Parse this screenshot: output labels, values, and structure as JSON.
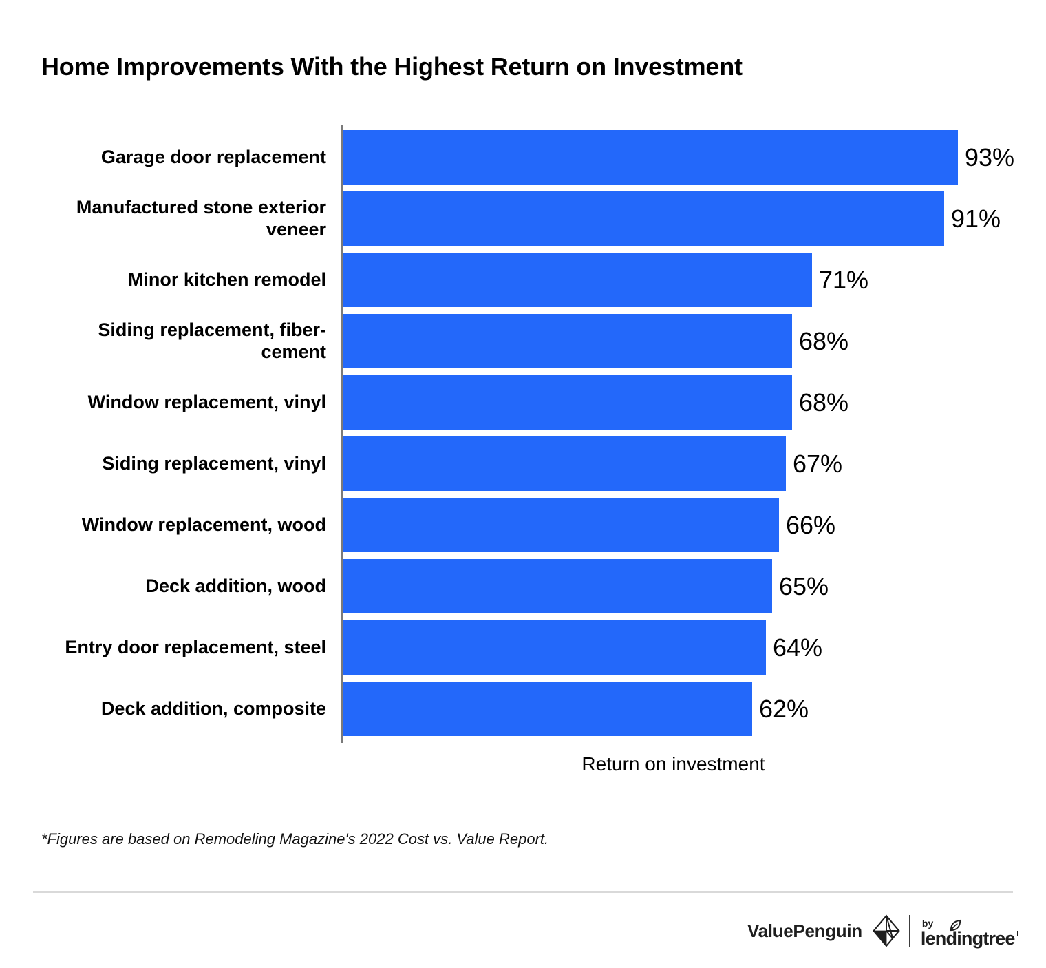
{
  "title": "Home Improvements With the Highest Return on Investment",
  "chart_data": {
    "type": "bar",
    "orientation": "horizontal",
    "title": "Home Improvements With the Highest Return on Investment",
    "categories": [
      "Garage door replacement",
      "Manufactured stone exterior veneer",
      "Minor kitchen remodel",
      "Siding replacement, fiber-cement",
      "Window replacement, vinyl",
      "Siding replacement, vinyl",
      "Window replacement, wood",
      "Deck addition, wood",
      "Entry door replacement, steel",
      "Deck addition, composite"
    ],
    "values": [
      93,
      91,
      71,
      68,
      68,
      67,
      66,
      65,
      64,
      62
    ],
    "value_suffix": "%",
    "xlabel": "Return on investment",
    "ylabel": "",
    "xlim": [
      0,
      100
    ],
    "grid": false,
    "legend_position": "none",
    "bar_color": "#2368fa",
    "axis_color": "#7a7a7a"
  },
  "footnote": "*Figures are based on Remodeling Magazine's 2022 Cost vs. Value Report.",
  "footer": {
    "valuepenguin": "ValuePenguin",
    "by": "by",
    "lendingtree": "lendingtree"
  }
}
